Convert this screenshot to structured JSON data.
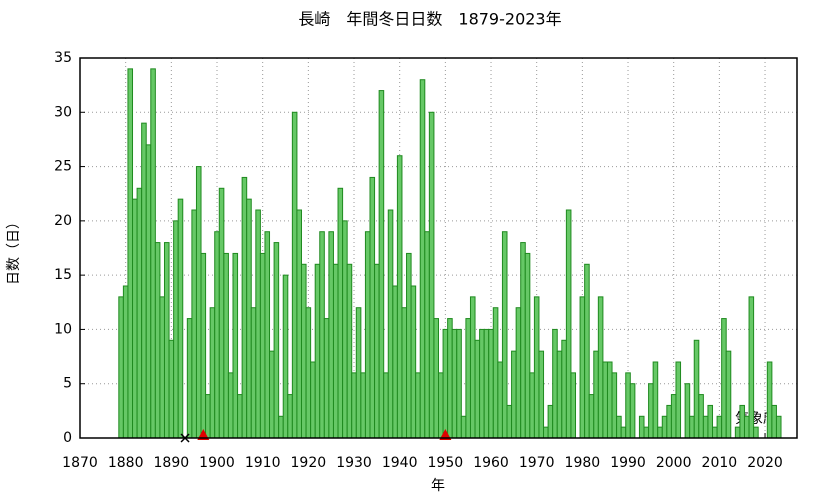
{
  "chart_data": {
    "type": "bar",
    "title": "長崎　年間冬日日数　1879-2023年",
    "x_label": "年",
    "y_label": "日数（日）",
    "source": "気象庁",
    "x": [
      1879,
      1880,
      1881,
      1882,
      1883,
      1884,
      1885,
      1886,
      1887,
      1888,
      1889,
      1890,
      1891,
      1892,
      1893,
      1894,
      1895,
      1896,
      1897,
      1898,
      1899,
      1900,
      1901,
      1902,
      1903,
      1904,
      1905,
      1906,
      1907,
      1908,
      1909,
      1910,
      1911,
      1912,
      1913,
      1914,
      1915,
      1916,
      1917,
      1918,
      1919,
      1920,
      1921,
      1922,
      1923,
      1924,
      1925,
      1926,
      1927,
      1928,
      1929,
      1930,
      1931,
      1932,
      1933,
      1934,
      1935,
      1936,
      1937,
      1938,
      1939,
      1940,
      1941,
      1942,
      1943,
      1944,
      1945,
      1946,
      1947,
      1948,
      1949,
      1950,
      1951,
      1952,
      1953,
      1954,
      1955,
      1956,
      1957,
      1958,
      1959,
      1960,
      1961,
      1962,
      1963,
      1964,
      1965,
      1966,
      1967,
      1968,
      1969,
      1970,
      1971,
      1972,
      1973,
      1974,
      1975,
      1976,
      1977,
      1978,
      1979,
      1980,
      1981,
      1982,
      1983,
      1984,
      1985,
      1986,
      1987,
      1988,
      1989,
      1990,
      1991,
      1992,
      1993,
      1994,
      1995,
      1996,
      1997,
      1998,
      1999,
      2000,
      2001,
      2002,
      2003,
      2004,
      2005,
      2006,
      2007,
      2008,
      2009,
      2010,
      2011,
      2012,
      2013,
      2014,
      2015,
      2016,
      2017,
      2018,
      2019,
      2020,
      2021,
      2022,
      2023
    ],
    "values": [
      13,
      14,
      34,
      22,
      23,
      29,
      27,
      34,
      18,
      13,
      18,
      9,
      20,
      22,
      null,
      11,
      21,
      25,
      17,
      4,
      12,
      19,
      23,
      17,
      6,
      17,
      4,
      24,
      22,
      12,
      21,
      17,
      19,
      8,
      18,
      2,
      15,
      4,
      30,
      21,
      16,
      12,
      7,
      16,
      19,
      11,
      19,
      16,
      23,
      20,
      16,
      6,
      12,
      6,
      19,
      24,
      16,
      32,
      6,
      21,
      14,
      26,
      12,
      17,
      14,
      6,
      33,
      19,
      30,
      11,
      6,
      10,
      11,
      10,
      10,
      2,
      11,
      13,
      9,
      10,
      10,
      10,
      12,
      7,
      19,
      3,
      8,
      12,
      18,
      17,
      6,
      13,
      8,
      1,
      3,
      10,
      8,
      9,
      21,
      6,
      0,
      13,
      16,
      4,
      8,
      13,
      7,
      7,
      6,
      2,
      1,
      6,
      5,
      0,
      2,
      1,
      5,
      7,
      1,
      2,
      3,
      4,
      7,
      0,
      5,
      2,
      9,
      4,
      2,
      3,
      1,
      2,
      11,
      8,
      0,
      1,
      3,
      2,
      13,
      1,
      0,
      0,
      7,
      3,
      2
    ],
    "color": "#66c866",
    "edge_color": "#1f8a1f",
    "station_moves": [
      1897,
      1950
    ],
    "missing": [
      1893
    ],
    "xlim": [
      1870,
      2027
    ],
    "xticks": [
      1870,
      1880,
      1890,
      1900,
      1910,
      1920,
      1930,
      1940,
      1950,
      1960,
      1970,
      1980,
      1990,
      2000,
      2010,
      2020
    ],
    "ylim": [
      0,
      35
    ],
    "yticks": [
      0,
      5,
      10,
      15,
      20,
      25,
      30,
      35
    ],
    "grid": true
  }
}
